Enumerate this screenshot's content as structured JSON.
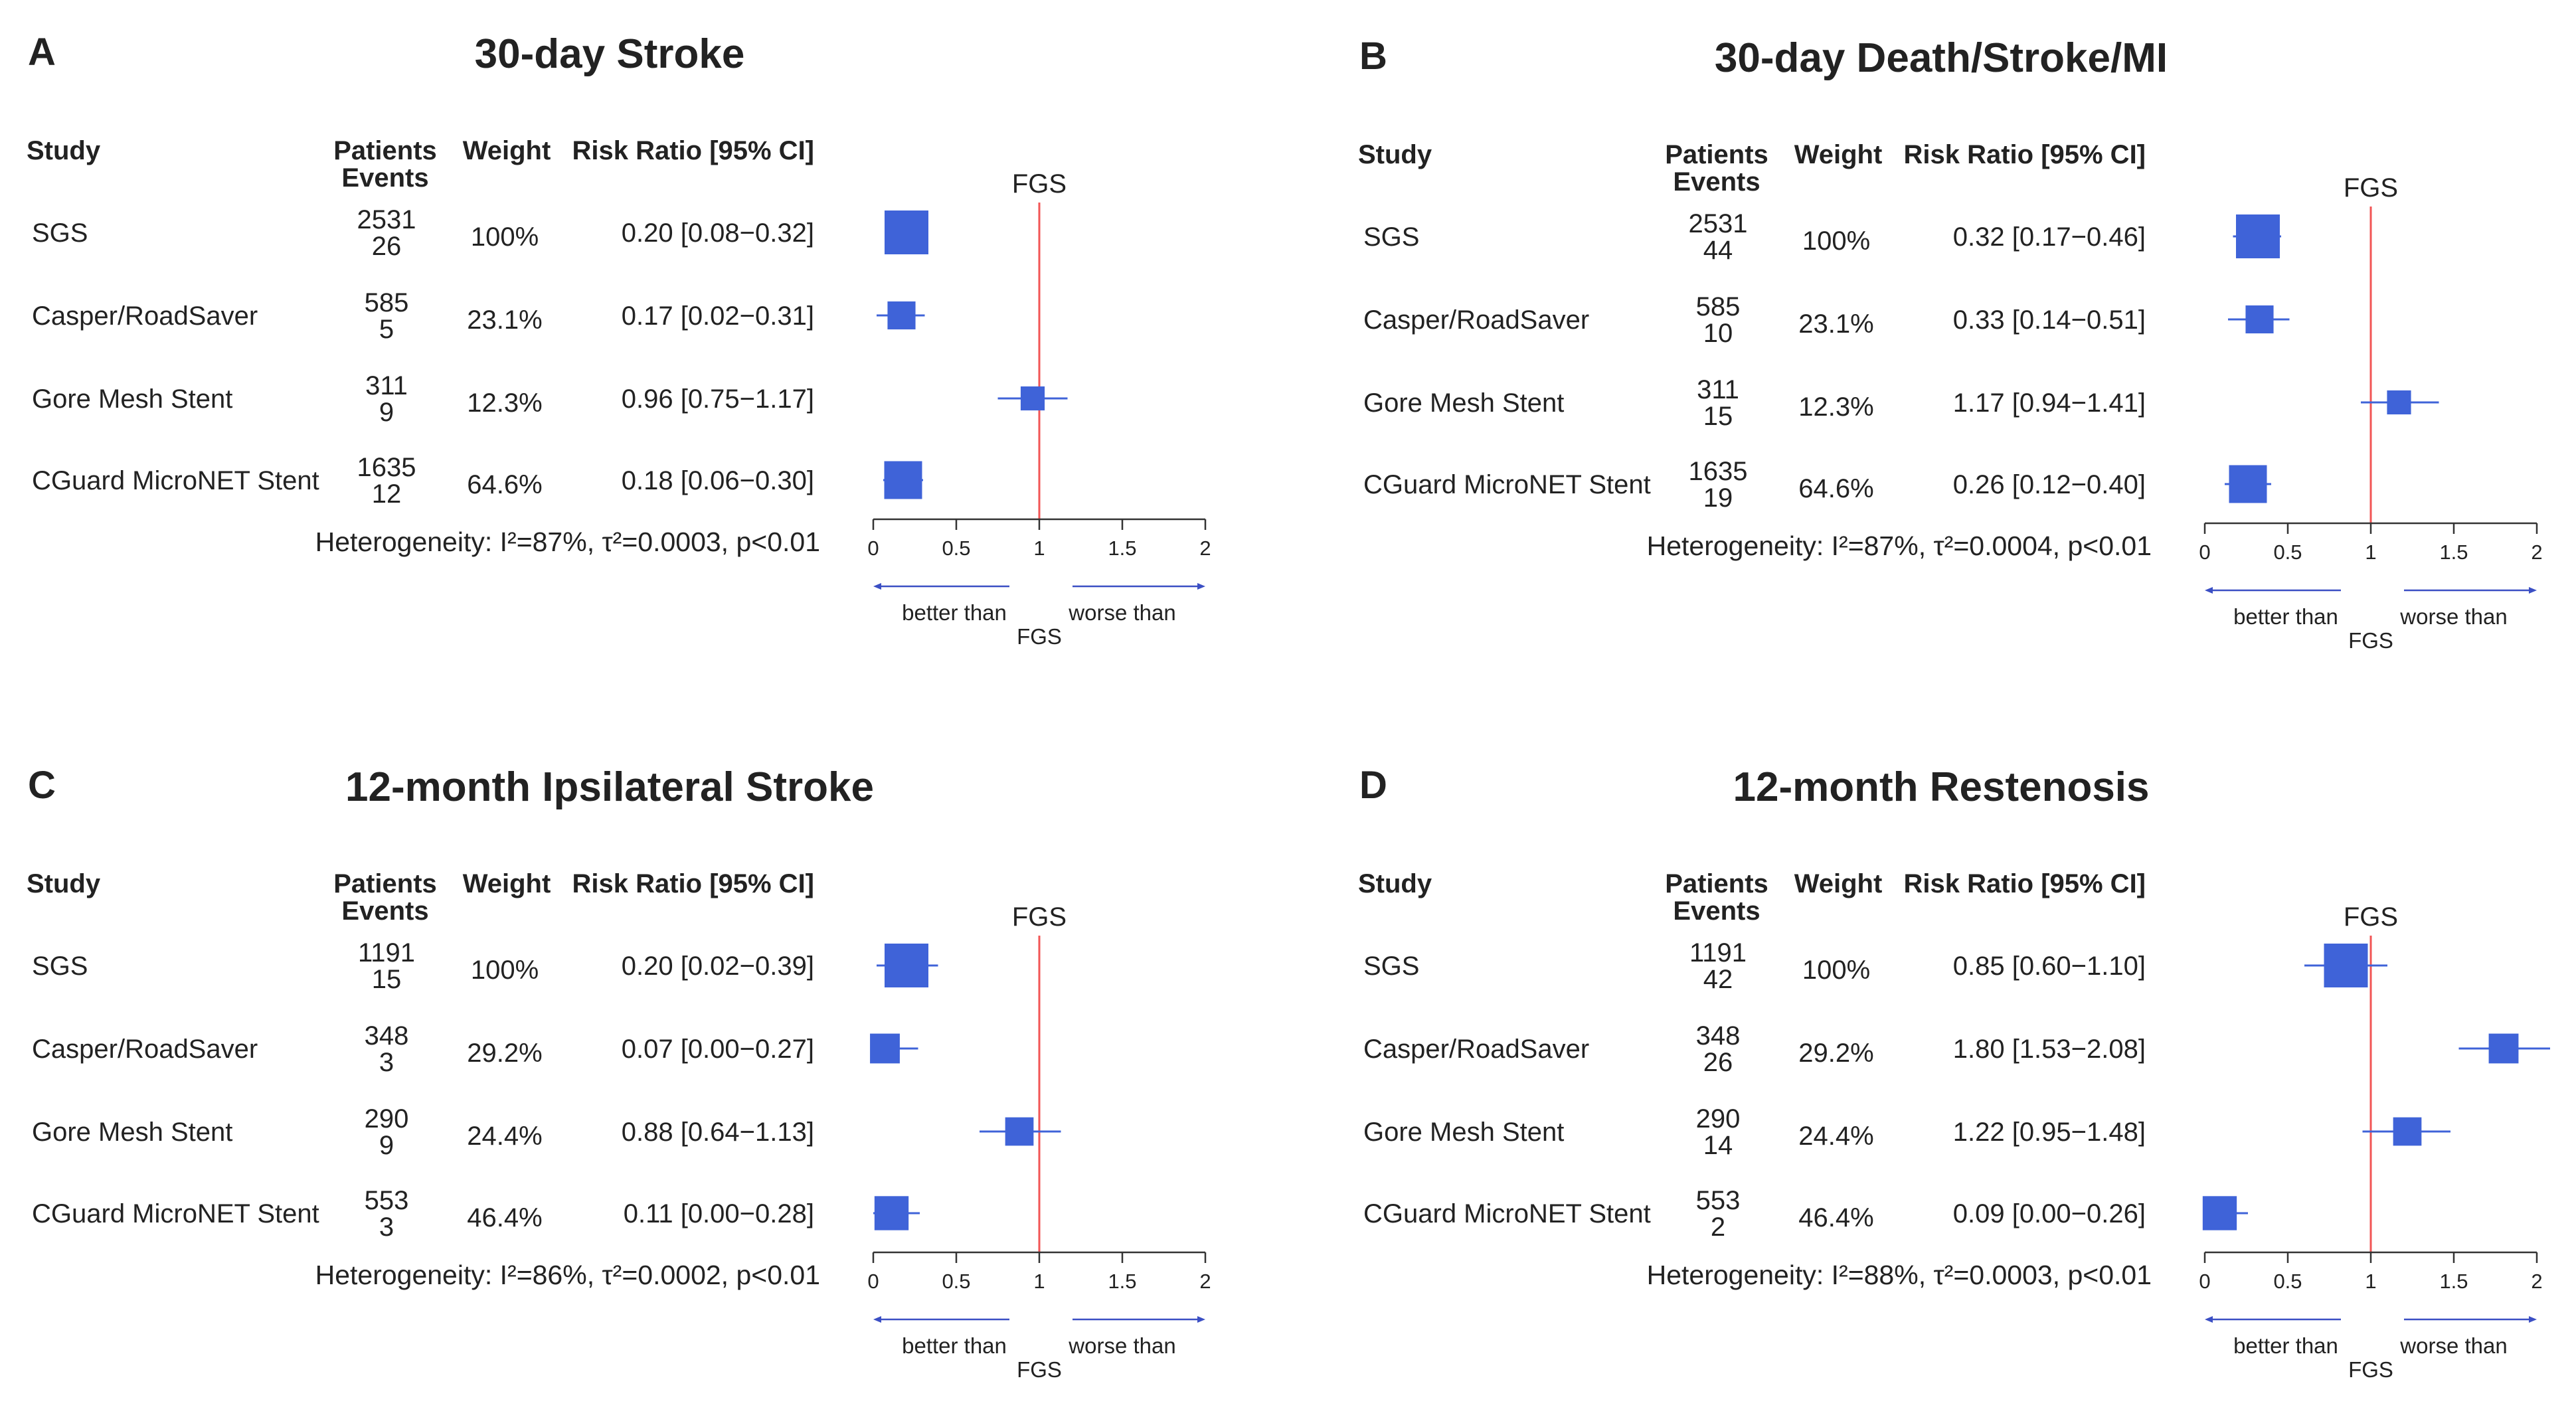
{
  "headers": {
    "study": "Study",
    "patients": "Patients",
    "events": "Events",
    "weight": "Weight",
    "rr": "Risk Ratio [95% CI]"
  },
  "reference_label": "FGS",
  "annotations": {
    "better": "better than",
    "worse": "worse than",
    "fgs": "FGS"
  },
  "colors": {
    "marker": "#3f63d8",
    "reference_line": "#f25555",
    "axis": "#333333",
    "arrow": "#3b4fc4"
  },
  "chart_data": [
    {
      "type": "forest",
      "panel": "A",
      "title": "30-day Stroke",
      "xlim": [
        0,
        2
      ],
      "xticks": [
        "0",
        "0.5",
        "1",
        "1.5",
        "2"
      ],
      "reference": 1,
      "heterogeneity": "Heterogeneity: I²=87%, τ²=0.0003, p<0.01",
      "studies": [
        {
          "name": "SGS",
          "patients": "2531",
          "events": "26",
          "weight": "100%",
          "rr_text": "0.20 [0.08−0.32]",
          "rr": 0.2,
          "lo": 0.08,
          "hi": 0.32
        },
        {
          "name": "Casper/RoadSaver",
          "patients": "585",
          "events": "5",
          "weight": "23.1%",
          "rr_text": "0.17 [0.02−0.31]",
          "rr": 0.17,
          "lo": 0.02,
          "hi": 0.31
        },
        {
          "name": "Gore Mesh Stent",
          "patients": "311",
          "events": "9",
          "weight": "12.3%",
          "rr_text": "0.96 [0.75−1.17]",
          "rr": 0.96,
          "lo": 0.75,
          "hi": 1.17
        },
        {
          "name": "CGuard MicroNET Stent",
          "patients": "1635",
          "events": "12",
          "weight": "64.6%",
          "rr_text": "0.18 [0.06−0.30]",
          "rr": 0.18,
          "lo": 0.06,
          "hi": 0.3
        }
      ]
    },
    {
      "type": "forest",
      "panel": "B",
      "title": "30-day Death/Stroke/MI",
      "xlim": [
        0,
        2
      ],
      "xticks": [
        "0",
        "0.5",
        "1",
        "1.5",
        "2"
      ],
      "reference": 1,
      "heterogeneity": "Heterogeneity: I²=87%, τ²=0.0004, p<0.01",
      "studies": [
        {
          "name": "SGS",
          "patients": "2531",
          "events": "44",
          "weight": "100%",
          "rr_text": "0.32 [0.17−0.46]",
          "rr": 0.32,
          "lo": 0.17,
          "hi": 0.46
        },
        {
          "name": "Casper/RoadSaver",
          "patients": "585",
          "events": "10",
          "weight": "23.1%",
          "rr_text": "0.33 [0.14−0.51]",
          "rr": 0.33,
          "lo": 0.14,
          "hi": 0.51
        },
        {
          "name": "Gore Mesh Stent",
          "patients": "311",
          "events": "15",
          "weight": "12.3%",
          "rr_text": "1.17 [0.94−1.41]",
          "rr": 1.17,
          "lo": 0.94,
          "hi": 1.41
        },
        {
          "name": "CGuard MicroNET Stent",
          "patients": "1635",
          "events": "19",
          "weight": "64.6%",
          "rr_text": "0.26 [0.12−0.40]",
          "rr": 0.26,
          "lo": 0.12,
          "hi": 0.4
        }
      ]
    },
    {
      "type": "forest",
      "panel": "C",
      "title": "12-month Ipsilateral Stroke",
      "xlim": [
        0,
        2
      ],
      "xticks": [
        "0",
        "0.5",
        "1",
        "1.5",
        "2"
      ],
      "reference": 1,
      "heterogeneity": "Heterogeneity: I²=86%, τ²=0.0002, p<0.01",
      "studies": [
        {
          "name": "SGS",
          "patients": "1191",
          "events": "15",
          "weight": "100%",
          "rr_text": "0.20 [0.02−0.39]",
          "rr": 0.2,
          "lo": 0.02,
          "hi": 0.39
        },
        {
          "name": "Casper/RoadSaver",
          "patients": "348",
          "events": "3",
          "weight": "29.2%",
          "rr_text": "0.07 [0.00−0.27]",
          "rr": 0.07,
          "lo": 0.0,
          "hi": 0.27
        },
        {
          "name": "Gore Mesh Stent",
          "patients": "290",
          "events": "9",
          "weight": "24.4%",
          "rr_text": "0.88 [0.64−1.13]",
          "rr": 0.88,
          "lo": 0.64,
          "hi": 1.13
        },
        {
          "name": "CGuard MicroNET Stent",
          "patients": "553",
          "events": "3",
          "weight": "46.4%",
          "rr_text": "0.11 [0.00−0.28]",
          "rr": 0.11,
          "lo": 0.0,
          "hi": 0.28
        }
      ]
    },
    {
      "type": "forest",
      "panel": "D",
      "title": "12-month Restenosis",
      "xlim": [
        0,
        2
      ],
      "xticks": [
        "0",
        "0.5",
        "1",
        "1.5",
        "2"
      ],
      "reference": 1,
      "heterogeneity": "Heterogeneity: I²=88%, τ²=0.0003, p<0.01",
      "studies": [
        {
          "name": "SGS",
          "patients": "1191",
          "events": "42",
          "weight": "100%",
          "rr_text": "0.85 [0.60−1.10]",
          "rr": 0.85,
          "lo": 0.6,
          "hi": 1.1
        },
        {
          "name": "Casper/RoadSaver",
          "patients": "348",
          "events": "26",
          "weight": "29.2%",
          "rr_text": "1.80 [1.53−2.08]",
          "rr": 1.8,
          "lo": 1.53,
          "hi": 2.08
        },
        {
          "name": "Gore Mesh Stent",
          "patients": "290",
          "events": "14",
          "weight": "24.4%",
          "rr_text": "1.22 [0.95−1.48]",
          "rr": 1.22,
          "lo": 0.95,
          "hi": 1.48
        },
        {
          "name": "CGuard MicroNET Stent",
          "patients": "553",
          "events": "2",
          "weight": "46.4%",
          "rr_text": "0.09 [0.00−0.26]",
          "rr": 0.09,
          "lo": 0.0,
          "hi": 0.26
        }
      ]
    }
  ]
}
